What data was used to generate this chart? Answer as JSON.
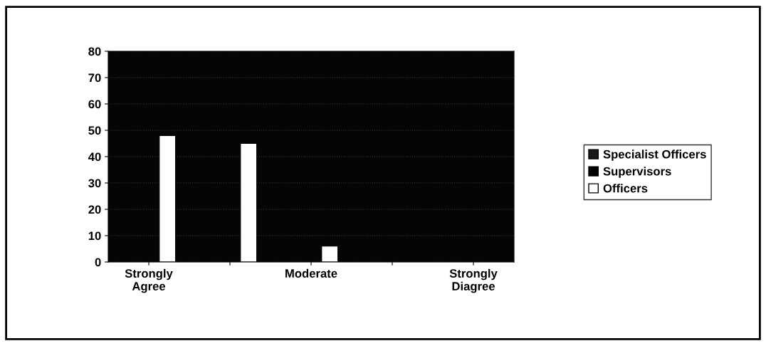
{
  "chart_data": {
    "type": "bar",
    "categories": [
      "Strongly Agree",
      null,
      "Moderate",
      null,
      "Strongly Diagree"
    ],
    "series": [
      {
        "name": "Specialist Officers",
        "color": "#1a1a1a",
        "values": [
          null,
          null,
          null,
          null,
          null
        ]
      },
      {
        "name": "Supervisors",
        "color": "#000000",
        "values": [
          null,
          null,
          null,
          null,
          null
        ]
      },
      {
        "name": "Officers",
        "color": "#ffffff",
        "values": [
          48,
          45,
          6,
          0,
          0
        ]
      }
    ],
    "ylim": [
      0,
      80
    ],
    "yticks": [
      0,
      10,
      20,
      30,
      40,
      50,
      60,
      70,
      80
    ],
    "grid": "y",
    "legend": "right"
  }
}
